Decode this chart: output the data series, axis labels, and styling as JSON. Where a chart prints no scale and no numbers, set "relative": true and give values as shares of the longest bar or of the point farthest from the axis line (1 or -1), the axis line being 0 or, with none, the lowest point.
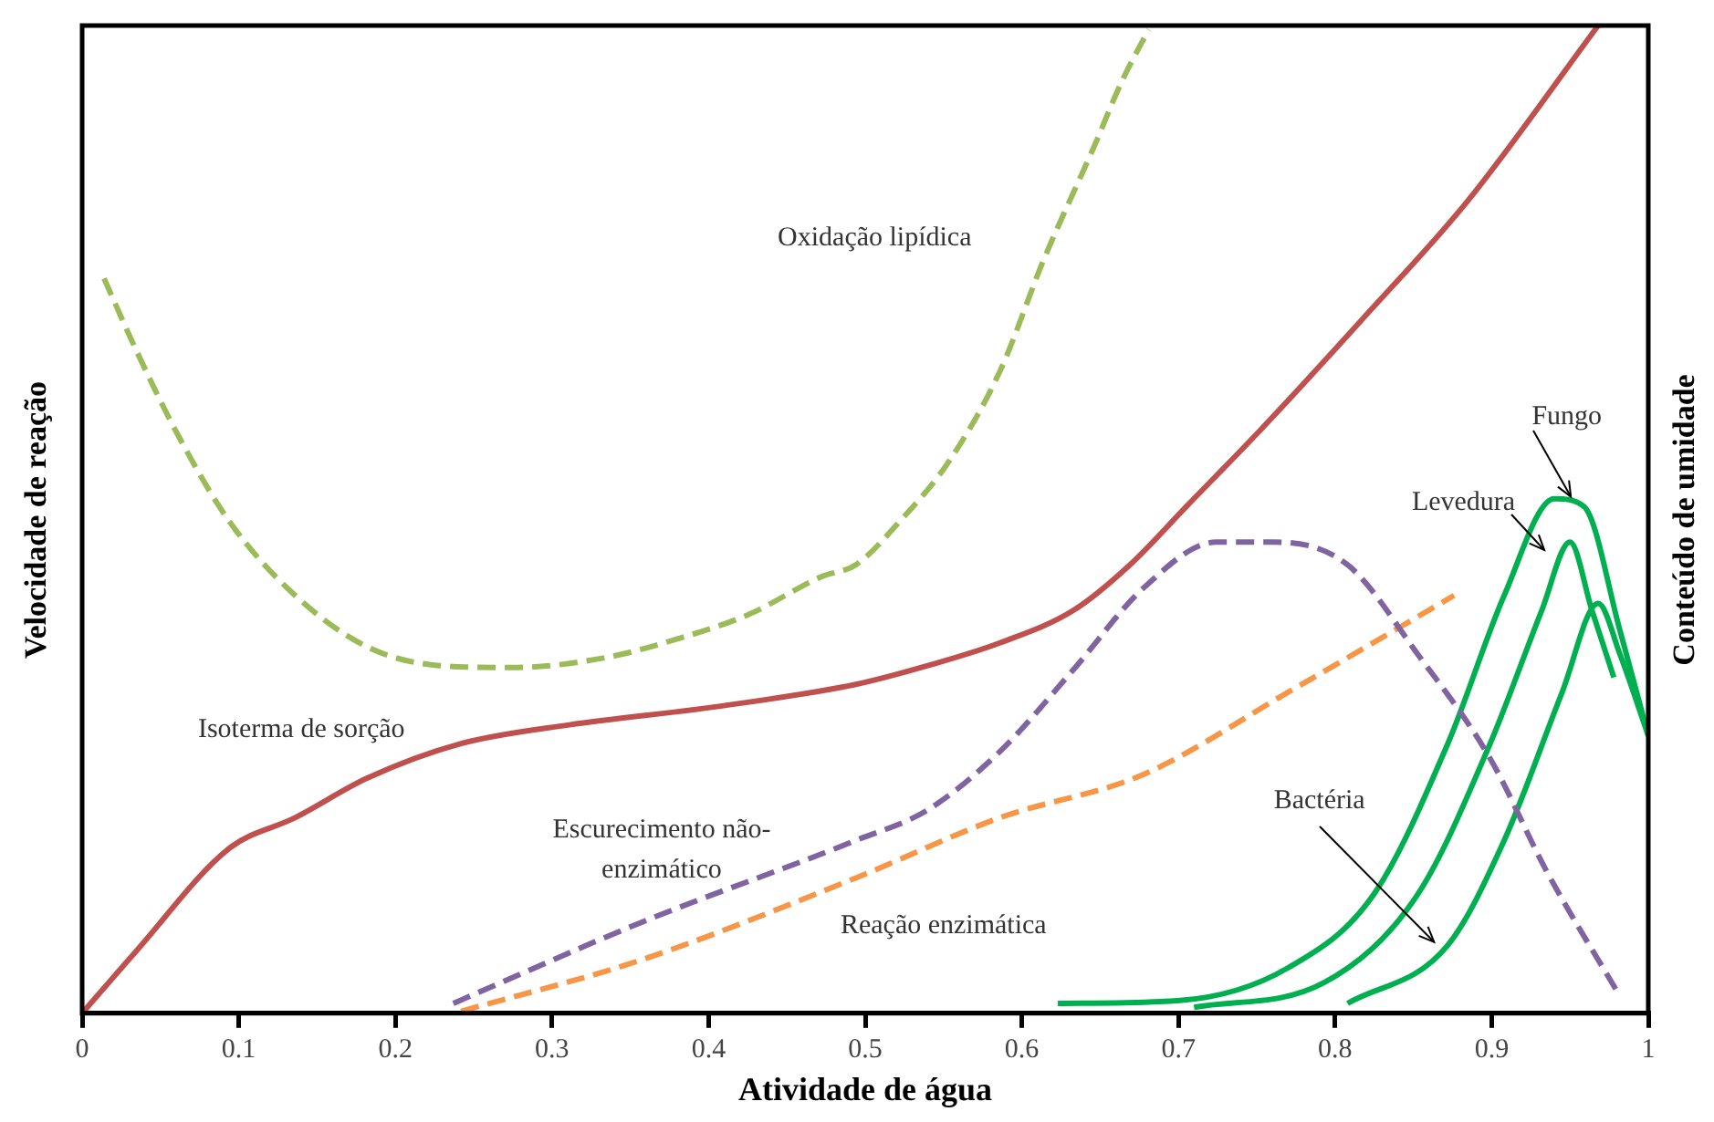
{
  "chart_data": {
    "type": "line",
    "xlabel": "Atividade de água",
    "ylabel": "Velocidade de reação",
    "y2label": "Conteúdo de umidade",
    "relative": true,
    "xlim": [
      0,
      1
    ],
    "xticks": [
      0,
      0.1,
      0.2,
      0.3,
      0.4,
      0.5,
      0.6,
      0.7,
      0.8,
      0.9,
      1
    ],
    "grid": false,
    "legend": false,
    "marker": "none",
    "series": [
      {
        "name": "Oxidação lipídica",
        "color": "#9bbb59",
        "line_style": "dashed",
        "x": [
          0.014,
          0.034,
          0.062,
          0.094,
          0.136,
          0.182,
          0.228,
          0.274,
          0.334,
          0.38,
          0.426,
          0.472,
          0.494,
          0.522,
          0.554,
          0.586,
          0.614,
          0.646,
          0.664,
          0.681
        ],
        "values": [
          0.744,
          0.673,
          0.583,
          0.498,
          0.423,
          0.371,
          0.352,
          0.35,
          0.36,
          0.379,
          0.404,
          0.442,
          0.454,
          0.498,
          0.56,
          0.65,
          0.763,
          0.877,
          0.944,
          0.996
        ]
      },
      {
        "name": "Isoterma de sorção",
        "color": "#c0504d",
        "line_style": "solid",
        "x": [
          0,
          0.034,
          0.094,
          0.136,
          0.182,
          0.242,
          0.311,
          0.403,
          0.494,
          0.54,
          0.586,
          0.633,
          0.669,
          0.705,
          0.752,
          0.817,
          0.885,
          0.968
        ],
        "values": [
          0,
          0.062,
          0.167,
          0.198,
          0.238,
          0.273,
          0.292,
          0.31,
          0.333,
          0.352,
          0.375,
          0.408,
          0.454,
          0.513,
          0.59,
          0.702,
          0.823,
          1
        ]
      },
      {
        "name": "Escurecimento não-enzimático",
        "color": "#8064a2",
        "line_style": "dashed",
        "x": [
          0.237,
          0.357,
          0.494,
          0.54,
          0.586,
          0.633,
          0.678,
          0.724,
          0.761,
          0.808,
          0.853,
          0.899,
          0.935,
          0.982
        ],
        "values": [
          0.01,
          0.092,
          0.175,
          0.206,
          0.265,
          0.348,
          0.431,
          0.477,
          0.477,
          0.454,
          0.363,
          0.258,
          0.144,
          0.017
        ]
      },
      {
        "name": "Reação enzimática",
        "color": "#f79646",
        "line_style": "dashed",
        "x": [
          0.242,
          0.357,
          0.494,
          0.586,
          0.678,
          0.77,
          0.876
        ],
        "values": [
          0.002,
          0.054,
          0.137,
          0.198,
          0.242,
          0.325,
          0.423
        ]
      },
      {
        "name": "Fungo",
        "color": "#00b050",
        "line_style": "solid",
        "x": [
          0.623,
          0.701,
          0.77,
          0.825,
          0.872,
          0.908,
          0.94,
          0.959,
          0.982,
          1
        ],
        "values": [
          0.01,
          0.013,
          0.046,
          0.121,
          0.273,
          0.423,
          0.521,
          0.513,
          0.387,
          0.281
        ]
      },
      {
        "name": "Levedura",
        "color": "#00b050",
        "line_style": "solid",
        "x": [
          0.71,
          0.793,
          0.853,
          0.899,
          0.932,
          0.95,
          0.964,
          0.978
        ],
        "values": [
          0.006,
          0.031,
          0.121,
          0.273,
          0.408,
          0.477,
          0.408,
          0.34
        ]
      },
      {
        "name": "Bactéria",
        "color": "#00b050",
        "line_style": "solid",
        "x": [
          0.808,
          0.872,
          0.908,
          0.945,
          0.968,
          0.982,
          1
        ],
        "values": [
          0.01,
          0.069,
          0.175,
          0.325,
          0.415,
          0.363,
          0.281
        ]
      }
    ]
  }
}
